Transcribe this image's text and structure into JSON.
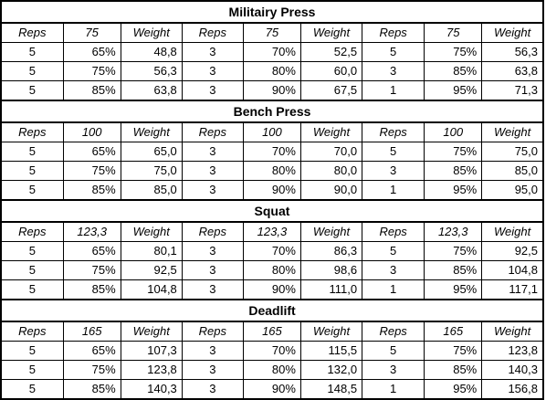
{
  "sections": [
    {
      "title": "Militairy Press",
      "headers": [
        "Reps",
        "75",
        "Weight",
        "Reps",
        "75",
        "Weight",
        "Reps",
        "75",
        "Weight"
      ],
      "rows": [
        [
          "5",
          "65%",
          "48,8",
          "3",
          "70%",
          "52,5",
          "5",
          "75%",
          "56,3"
        ],
        [
          "5",
          "75%",
          "56,3",
          "3",
          "80%",
          "60,0",
          "3",
          "85%",
          "63,8"
        ],
        [
          "5",
          "85%",
          "63,8",
          "3",
          "90%",
          "67,5",
          "1",
          "95%",
          "71,3"
        ]
      ]
    },
    {
      "title": "Bench Press",
      "headers": [
        "Reps",
        "100",
        "Weight",
        "Reps",
        "100",
        "Weight",
        "Reps",
        "100",
        "Weight"
      ],
      "rows": [
        [
          "5",
          "65%",
          "65,0",
          "3",
          "70%",
          "70,0",
          "5",
          "75%",
          "75,0"
        ],
        [
          "5",
          "75%",
          "75,0",
          "3",
          "80%",
          "80,0",
          "3",
          "85%",
          "85,0"
        ],
        [
          "5",
          "85%",
          "85,0",
          "3",
          "90%",
          "90,0",
          "1",
          "95%",
          "95,0"
        ]
      ]
    },
    {
      "title": "Squat",
      "headers": [
        "Reps",
        "123,3",
        "Weight",
        "Reps",
        "123,3",
        "Weight",
        "Reps",
        "123,3",
        "Weight"
      ],
      "rows": [
        [
          "5",
          "65%",
          "80,1",
          "3",
          "70%",
          "86,3",
          "5",
          "75%",
          "92,5"
        ],
        [
          "5",
          "75%",
          "92,5",
          "3",
          "80%",
          "98,6",
          "3",
          "85%",
          "104,8"
        ],
        [
          "5",
          "85%",
          "104,8",
          "3",
          "90%",
          "111,0",
          "1",
          "95%",
          "117,1"
        ]
      ]
    },
    {
      "title": "Deadlift",
      "headers": [
        "Reps",
        "165",
        "Weight",
        "Reps",
        "165",
        "Weight",
        "Reps",
        "165",
        "Weight"
      ],
      "rows": [
        [
          "5",
          "65%",
          "107,3",
          "3",
          "70%",
          "115,5",
          "5",
          "75%",
          "123,8"
        ],
        [
          "5",
          "75%",
          "123,8",
          "3",
          "80%",
          "132,0",
          "3",
          "85%",
          "140,3"
        ],
        [
          "5",
          "85%",
          "140,3",
          "3",
          "90%",
          "148,5",
          "1",
          "95%",
          "156,8"
        ]
      ]
    }
  ]
}
